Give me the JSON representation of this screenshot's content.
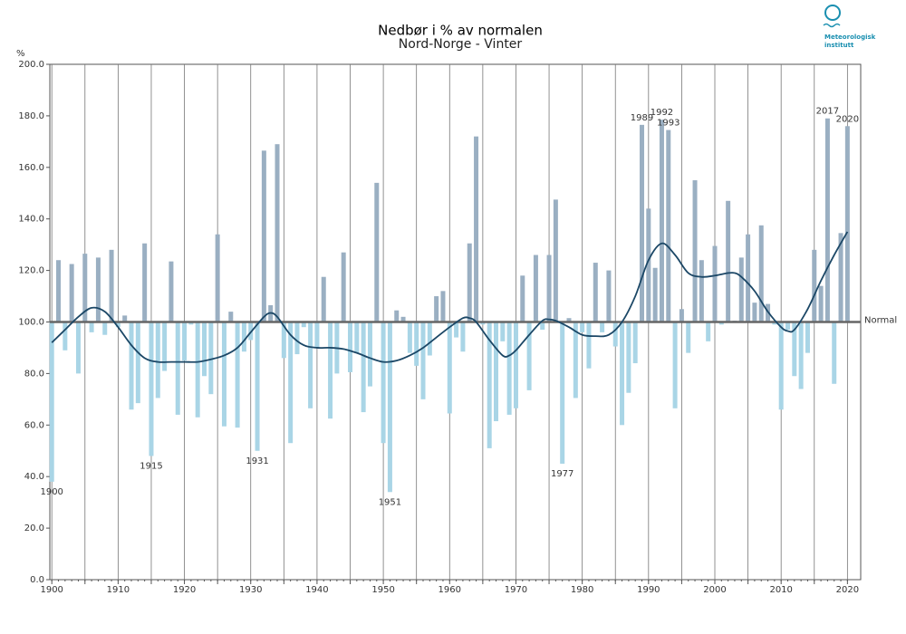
{
  "chart_data": {
    "type": "bar",
    "title": "Nedbør i % av normalen",
    "subtitle": "Nord-Norge - Vinter",
    "ylabel": "%",
    "logo": [
      "Meteorologisk",
      "institutt"
    ],
    "x": [
      1900,
      1901,
      1902,
      1903,
      1904,
      1905,
      1906,
      1907,
      1908,
      1909,
      1910,
      1911,
      1912,
      1913,
      1914,
      1915,
      1916,
      1917,
      1918,
      1919,
      1920,
      1921,
      1922,
      1923,
      1924,
      1925,
      1926,
      1927,
      1928,
      1929,
      1930,
      1931,
      1932,
      1933,
      1934,
      1935,
      1936,
      1937,
      1938,
      1939,
      1940,
      1941,
      1942,
      1943,
      1944,
      1945,
      1946,
      1947,
      1948,
      1949,
      1950,
      1951,
      1952,
      1953,
      1954,
      1955,
      1956,
      1957,
      1958,
      1959,
      1960,
      1961,
      1962,
      1963,
      1964,
      1965,
      1966,
      1967,
      1968,
      1969,
      1970,
      1971,
      1972,
      1973,
      1974,
      1975,
      1976,
      1977,
      1978,
      1979,
      1980,
      1981,
      1982,
      1983,
      1984,
      1985,
      1986,
      1987,
      1988,
      1989,
      1990,
      1991,
      1992,
      1993,
      1994,
      1995,
      1996,
      1997,
      1998,
      1999,
      2000,
      2001,
      2002,
      2003,
      2004,
      2005,
      2006,
      2007,
      2008,
      2009,
      2010,
      2011,
      2012,
      2013,
      2014,
      2015,
      2016,
      2017,
      2018,
      2019,
      2020
    ],
    "values": [
      38,
      124,
      89,
      122.5,
      80,
      126.5,
      96,
      125,
      95,
      128,
      98,
      102.5,
      66,
      68.5,
      130.5,
      48,
      70.5,
      81,
      123.5,
      64,
      85,
      99,
      63,
      79,
      72,
      134,
      59.5,
      104,
      59,
      88.5,
      93,
      50,
      166.5,
      106.5,
      169,
      86,
      53,
      87.5,
      98,
      66.5,
      90,
      117.5,
      62.5,
      80,
      127,
      80.5,
      88,
      65,
      75,
      154,
      53,
      34,
      104.5,
      102,
      88,
      83,
      70,
      87,
      110,
      112,
      64.5,
      94,
      88.5,
      130.5,
      172,
      99,
      51,
      61.5,
      92.5,
      64,
      66.5,
      118,
      73.5,
      126,
      97,
      126,
      147.5,
      45,
      101.5,
      70.5,
      96,
      82,
      123,
      96,
      120,
      90.5,
      60,
      72.5,
      84,
      176.5,
      144,
      121,
      178.5,
      174.5,
      66.5,
      105,
      88,
      155,
      124,
      92.5,
      129.5,
      99,
      147,
      100.5,
      125,
      134,
      107.5,
      137.5,
      107,
      99,
      66,
      97,
      79,
      74,
      88,
      128,
      114,
      179,
      76,
      134.5,
      176
    ],
    "color_above": "#9aafc2",
    "color_below": "#a9d5e6",
    "reference_line": {
      "value": 100,
      "label": "Normal"
    },
    "trend": {
      "color": "#1b4766",
      "x": [
        1900,
        1902,
        1904,
        1906,
        1908,
        1910,
        1912,
        1914,
        1916,
        1918,
        1920,
        1922,
        1924,
        1926,
        1928,
        1930,
        1932,
        1933,
        1934,
        1936,
        1938,
        1940,
        1942,
        1944,
        1946,
        1948,
        1950,
        1952,
        1954,
        1956,
        1958,
        1960,
        1962,
        1963,
        1964,
        1966,
        1968,
        1969,
        1970,
        1972,
        1974,
        1975,
        1976,
        1978,
        1980,
        1982,
        1984,
        1986,
        1988,
        1990,
        1992,
        1994,
        1996,
        1998,
        2000,
        2002,
        2003,
        2004,
        2006,
        2008,
        2010,
        2011,
        2012,
        2014,
        2016,
        2018,
        2020
      ],
      "values": [
        92,
        97,
        102,
        105.5,
        104,
        98,
        91,
        86,
        84.5,
        84.5,
        84.5,
        84.5,
        85.5,
        87,
        90,
        96,
        102,
        103.5,
        102,
        95,
        91,
        90,
        90,
        89.5,
        88,
        86,
        84.5,
        85,
        87,
        90,
        94,
        98,
        101.5,
        101.5,
        100,
        93,
        87,
        87,
        89,
        95,
        100.5,
        101,
        100.5,
        98,
        95,
        94.5,
        95,
        100,
        110,
        124,
        130.5,
        126,
        119,
        117.5,
        118,
        119,
        119,
        117.5,
        112,
        104,
        98,
        96.5,
        97,
        105,
        116,
        126,
        135
      ]
    },
    "annotations": [
      {
        "label": "1900",
        "position": "below"
      },
      {
        "label": "1915",
        "position": "below"
      },
      {
        "label": "1931",
        "position": "below"
      },
      {
        "label": "1951",
        "position": "below"
      },
      {
        "label": "1977",
        "position": "below"
      },
      {
        "label": "1989",
        "position": "above"
      },
      {
        "label": "1992",
        "position": "above"
      },
      {
        "label": "1993",
        "position": "above"
      },
      {
        "label": "2017",
        "position": "above"
      },
      {
        "label": "2020",
        "position": "above"
      }
    ],
    "xlim": [
      1899.7,
      2022
    ],
    "xticks": [
      1900,
      1910,
      1920,
      1930,
      1940,
      1950,
      1960,
      1970,
      1980,
      1990,
      2000,
      2010,
      2020
    ],
    "xminorticks": [
      1905,
      1915,
      1925,
      1935,
      1945,
      1955,
      1965,
      1975,
      1985,
      1995,
      2005,
      2015
    ],
    "ylim": [
      0,
      200
    ],
    "yticks": [
      {
        "value": 0,
        "label": "0.0"
      },
      {
        "value": 20,
        "label": "20.0"
      },
      {
        "value": 40,
        "label": "40.0"
      },
      {
        "value": 60,
        "label": "60.0"
      },
      {
        "value": 80,
        "label": "80.0"
      },
      {
        "value": 100,
        "label": "100.0"
      },
      {
        "value": 120,
        "label": "120.0"
      },
      {
        "value": 140,
        "label": "140.0"
      },
      {
        "value": 160,
        "label": "160.0"
      },
      {
        "value": 180,
        "label": "180.0"
      },
      {
        "value": 200,
        "label": "200.0"
      }
    ],
    "grid": true
  }
}
